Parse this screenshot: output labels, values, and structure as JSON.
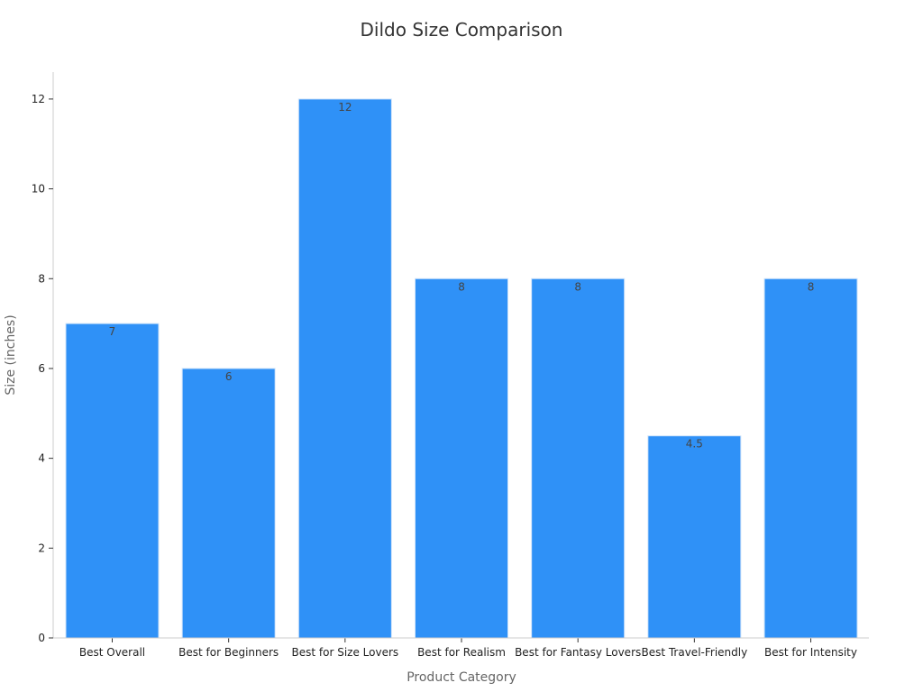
{
  "chart_data": {
    "type": "bar",
    "title": "Dildo Size Comparison",
    "xlabel": "Product Category",
    "ylabel": "Size (inches)",
    "categories": [
      "Best Overall",
      "Best for Beginners",
      "Best for Size Lovers",
      "Best for Realism",
      "Best for Fantasy Lovers",
      "Best Travel-Friendly",
      "Best for Intensity"
    ],
    "values": [
      7,
      6,
      12,
      8,
      8,
      4.5,
      8
    ],
    "value_labels": [
      "7",
      "6",
      "12",
      "8",
      "8",
      "4.5",
      "8"
    ],
    "ylim": [
      0,
      12.6
    ],
    "yticks": [
      0,
      2,
      4,
      6,
      8,
      10,
      12
    ],
    "ytick_labels": [
      "0",
      "2",
      "4",
      "6",
      "8",
      "10",
      "12"
    ],
    "grid": false,
    "bar_color": "#2f91f7"
  }
}
